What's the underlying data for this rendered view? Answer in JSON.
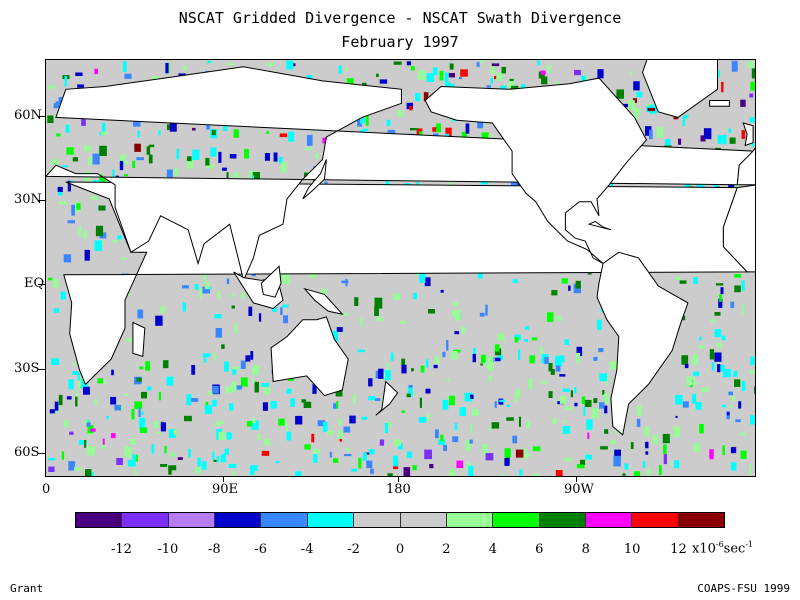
{
  "title": "NSCAT Gridded Divergence - NSCAT Swath Divergence",
  "subtitle": "February 1997",
  "lat_labels": [
    "60N",
    "30N",
    "EQ",
    "30S",
    "60S"
  ],
  "lon_labels": [
    "0",
    "90E",
    "180",
    "90W"
  ],
  "colorbar": {
    "colors": [
      "#4b0082",
      "#7b2ff7",
      "#b57cf5",
      "#0000cd",
      "#3a86ff",
      "#00ffff",
      "#cccccc",
      "#cccccc",
      "#98fb98",
      "#00ff00",
      "#008000",
      "#ff00ff",
      "#ff0000",
      "#8b0000"
    ],
    "tick_labels": [
      "-12",
      "-10",
      "-8",
      "-6",
      "-4",
      "-2",
      "0",
      "2",
      "4",
      "6",
      "8",
      "10",
      "12"
    ],
    "units_prefix": "x10",
    "units_exp1": "-6",
    "units_mid": "sec",
    "units_exp2": "-1"
  },
  "footer": {
    "left": "Grant",
    "right": "COAPS-FSU 1999"
  },
  "colors": {
    "ocean_base": "#cccccc",
    "land": "#ffffff",
    "coast": "#000000"
  }
}
